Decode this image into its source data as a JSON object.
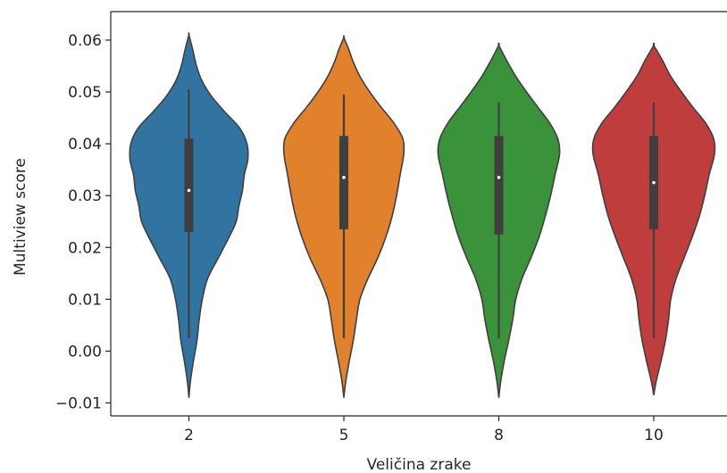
{
  "chart_data": {
    "type": "violin",
    "title": "",
    "xlabel": "Veličina zrake",
    "ylabel": "Multiview score",
    "categories": [
      "2",
      "5",
      "8",
      "10"
    ],
    "ylim": [
      -0.0125,
      0.0655
    ],
    "yticks": [
      -0.01,
      0.0,
      0.01,
      0.02,
      0.03,
      0.04,
      0.05,
      0.06
    ],
    "ytick_labels": [
      "−0.01",
      "0.00",
      "0.01",
      "0.02",
      "0.03",
      "0.04",
      "0.05",
      "0.06"
    ],
    "grid": false,
    "legend": "none",
    "series": [
      {
        "category": "2",
        "color": "#3274a1",
        "min": 0.0025,
        "q1": 0.023,
        "median": 0.031,
        "q3": 0.041,
        "max": 0.0505,
        "kde_min": -0.009,
        "kde_max": 0.061,
        "density": [
          [
            -0.009,
            0
          ],
          [
            -0.006,
            1.6
          ],
          [
            -0.002,
            5
          ],
          [
            0.002,
            9
          ],
          [
            0.006,
            11.5
          ],
          [
            0.01,
            15
          ],
          [
            0.014,
            21
          ],
          [
            0.018,
            33
          ],
          [
            0.022,
            45
          ],
          [
            0.025,
            53
          ],
          [
            0.028,
            56
          ],
          [
            0.031,
            60
          ],
          [
            0.034,
            62
          ],
          [
            0.037,
            66
          ],
          [
            0.04,
            65
          ],
          [
            0.043,
            57
          ],
          [
            0.046,
            41
          ],
          [
            0.049,
            26
          ],
          [
            0.052,
            15
          ],
          [
            0.055,
            8.5
          ],
          [
            0.058,
            4.5
          ],
          [
            0.061,
            0
          ]
        ]
      },
      {
        "category": "5",
        "color": "#e1812c",
        "min": 0.0025,
        "q1": 0.0235,
        "median": 0.0335,
        "q3": 0.0415,
        "max": 0.0495,
        "kde_min": -0.009,
        "kde_max": 0.0605,
        "density": [
          [
            -0.009,
            0
          ],
          [
            -0.006,
            2
          ],
          [
            -0.002,
            6
          ],
          [
            0.002,
            10.5
          ],
          [
            0.006,
            14
          ],
          [
            0.01,
            18
          ],
          [
            0.014,
            27
          ],
          [
            0.018,
            38
          ],
          [
            0.022,
            47
          ],
          [
            0.026,
            54
          ],
          [
            0.03,
            59
          ],
          [
            0.034,
            63
          ],
          [
            0.038,
            67
          ],
          [
            0.041,
            66
          ],
          [
            0.044,
            56
          ],
          [
            0.047,
            42
          ],
          [
            0.05,
            29
          ],
          [
            0.053,
            18
          ],
          [
            0.056,
            10
          ],
          [
            0.058,
            6
          ],
          [
            0.0605,
            0
          ]
        ]
      },
      {
        "category": "8",
        "color": "#3a923a",
        "min": 0.0025,
        "q1": 0.0225,
        "median": 0.0335,
        "q3": 0.0415,
        "max": 0.048,
        "kde_min": -0.009,
        "kde_max": 0.059,
        "density": [
          [
            -0.009,
            0
          ],
          [
            -0.006,
            2
          ],
          [
            -0.002,
            6
          ],
          [
            0.002,
            11
          ],
          [
            0.006,
            15.5
          ],
          [
            0.01,
            19
          ],
          [
            0.014,
            26
          ],
          [
            0.018,
            36
          ],
          [
            0.022,
            45
          ],
          [
            0.026,
            52
          ],
          [
            0.03,
            58
          ],
          [
            0.034,
            63
          ],
          [
            0.038,
            68
          ],
          [
            0.041,
            66
          ],
          [
            0.044,
            57
          ],
          [
            0.047,
            44
          ],
          [
            0.05,
            31
          ],
          [
            0.053,
            19
          ],
          [
            0.056,
            9
          ],
          [
            0.059,
            0
          ]
        ]
      },
      {
        "category": "10",
        "color": "#c03d3e",
        "min": 0.0025,
        "q1": 0.0235,
        "median": 0.0325,
        "q3": 0.0415,
        "max": 0.048,
        "kde_min": -0.0085,
        "kde_max": 0.059,
        "density": [
          [
            -0.0085,
            0
          ],
          [
            -0.006,
            2.5
          ],
          [
            -0.002,
            8
          ],
          [
            0.002,
            13
          ],
          [
            0.006,
            16.5
          ],
          [
            0.01,
            19
          ],
          [
            0.014,
            25
          ],
          [
            0.018,
            34
          ],
          [
            0.022,
            43
          ],
          [
            0.026,
            51
          ],
          [
            0.03,
            57
          ],
          [
            0.034,
            62
          ],
          [
            0.038,
            68
          ],
          [
            0.041,
            67
          ],
          [
            0.044,
            58
          ],
          [
            0.047,
            44
          ],
          [
            0.05,
            31
          ],
          [
            0.053,
            19
          ],
          [
            0.056,
            10
          ],
          [
            0.059,
            0
          ]
        ]
      }
    ]
  }
}
